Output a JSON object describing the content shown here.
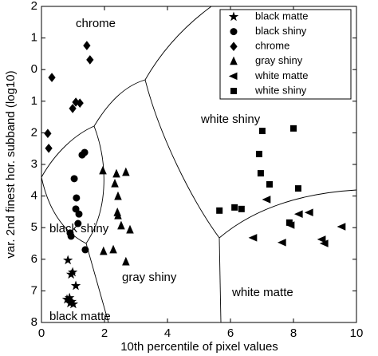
{
  "chart_data": {
    "type": "scatter",
    "x_label": "10th percentile of pixel values",
    "y_label": "var. 2nd finest hor. subband (log10)",
    "xlim": [
      0,
      10
    ],
    "xticks": [
      0,
      2,
      4,
      6,
      8,
      10
    ],
    "ylim": [
      8,
      -2
    ],
    "yticks": [
      {
        "value": -2,
        "label": "2"
      },
      {
        "value": -1,
        "label": "1"
      },
      0,
      1,
      2,
      3,
      4,
      5,
      6,
      7,
      8
    ],
    "legend": "upper right",
    "annotations": [
      "chrome",
      "white shiny",
      "black shiny",
      "gray shiny",
      "white matte",
      "black matte"
    ],
    "series": [
      {
        "name": "black matte",
        "marker": "star",
        "color": "#000000",
        "x": [
          0.84,
          0.99,
          0.94,
          1.09,
          0.89,
          0.81,
          0.96,
          1.01,
          0.91
        ],
        "values": [
          6.03,
          6.41,
          6.48,
          6.84,
          7.22,
          7.27,
          7.34,
          7.42,
          7.39
        ]
      },
      {
        "name": "black shiny",
        "marker": "circle",
        "color": "#000000",
        "x": [
          1.04,
          1.11,
          1.09,
          1.19,
          1.29,
          1.37,
          1.16,
          0.91,
          0.94,
          1.39
        ],
        "values": [
          3.45,
          4.06,
          4.41,
          4.57,
          2.7,
          2.62,
          4.87,
          5.17,
          5.27,
          5.7
        ]
      },
      {
        "name": "chrome",
        "marker": "diamond",
        "color": "#000000",
        "x": [
          1.44,
          1.54,
          0.33,
          0.99,
          1.09,
          1.22,
          0.2,
          0.23
        ],
        "values": [
          -0.76,
          -0.31,
          0.25,
          1.23,
          1.03,
          1.06,
          2.02,
          2.49
        ]
      },
      {
        "name": "gray shiny",
        "marker": "triangle-up",
        "color": "#000000",
        "x": [
          2.38,
          1.95,
          2.33,
          2.43,
          2.41,
          2.43,
          2.53,
          2.81,
          1.97,
          2.28,
          2.68,
          2.68
        ],
        "values": [
          3.3,
          3.2,
          3.61,
          4.01,
          4.52,
          4.62,
          4.94,
          5.07,
          5.75,
          5.7,
          6.08,
          3.25
        ]
      },
      {
        "name": "white matte",
        "marker": "triangle-left",
        "color": "#000000",
        "x": [
          7.16,
          8.18,
          8.51,
          6.73,
          7.65,
          8.91,
          8.99,
          9.54,
          7.92
        ],
        "values": [
          4.11,
          4.57,
          4.52,
          5.32,
          5.47,
          5.37,
          5.5,
          4.97,
          4.92
        ]
      },
      {
        "name": "white shiny",
        "marker": "square",
        "color": "#000000",
        "x": [
          7.01,
          8.0,
          6.91,
          6.96,
          7.24,
          8.15,
          6.35,
          5.65,
          6.13,
          7.87
        ],
        "values": [
          1.94,
          1.86,
          2.67,
          3.28,
          3.63,
          3.76,
          4.41,
          4.46,
          4.36,
          4.84
        ]
      }
    ]
  }
}
